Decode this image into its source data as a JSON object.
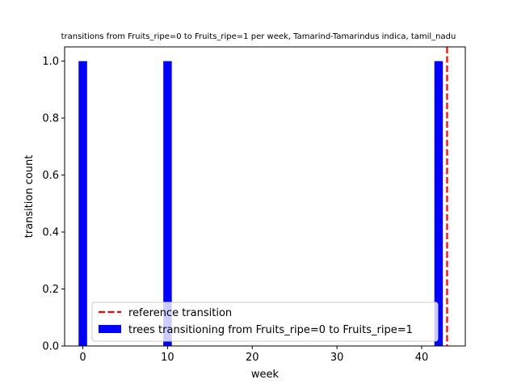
{
  "chart_data": {
    "type": "bar",
    "title": "transitions from Fruits_ripe=0 to Fruits_ripe=1 per week, Tamarind-Tamarindus indica, tamil_nadu",
    "xlabel": "week",
    "ylabel": "transition count",
    "xlim": [
      -2.15,
      45.15
    ],
    "ylim": [
      0,
      1.05
    ],
    "xticks": [
      0,
      10,
      20,
      30,
      40
    ],
    "yticks": [
      0.0,
      0.2,
      0.4,
      0.6,
      0.8,
      1.0
    ],
    "xtick_labels": [
      "0",
      "10",
      "20",
      "30",
      "40"
    ],
    "ytick_labels": [
      "0.0",
      "0.2",
      "0.4",
      "0.6",
      "0.8",
      "1.0"
    ],
    "series": [
      {
        "name": "trees transitioning from Fruits_ripe=0 to Fruits_ripe=1",
        "type": "bar",
        "color": "#0000ff",
        "bar_width": 1,
        "x": [
          0,
          10,
          42
        ],
        "values": [
          1,
          1,
          1
        ]
      }
    ],
    "reference_lines": [
      {
        "name": "reference transition",
        "x": 43,
        "color": "#ff0000",
        "style": "dashed"
      }
    ],
    "legend": {
      "position": "lower-center",
      "entries": [
        {
          "label": "reference transition",
          "kind": "dashed-line",
          "color": "#ff0000"
        },
        {
          "label": "trees transitioning from Fruits_ripe=0 to Fruits_ripe=1",
          "kind": "patch",
          "color": "#0000ff"
        }
      ]
    },
    "grid": false
  }
}
